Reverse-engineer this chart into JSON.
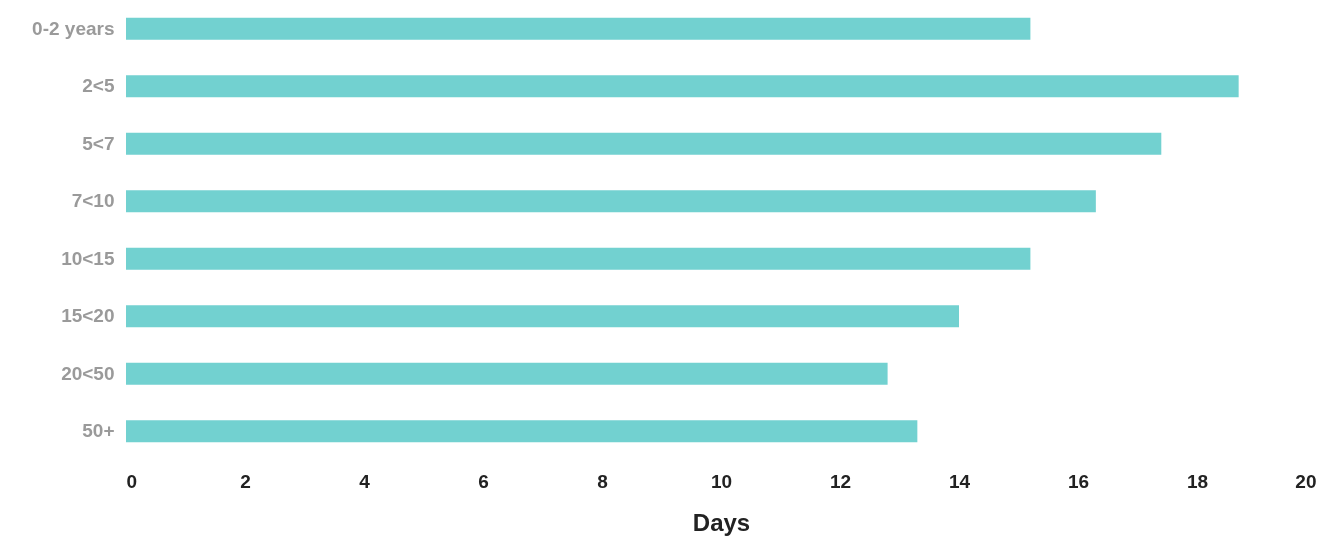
{
  "chart_data": {
    "type": "bar",
    "orientation": "horizontal",
    "xlabel": "Days",
    "categories": [
      "0-2 years",
      "2<5",
      "5<7",
      "7<10",
      "10<15",
      "15<20",
      "20<50",
      "50+"
    ],
    "values": [
      15.2,
      18.7,
      17.4,
      16.3,
      15.2,
      14.0,
      12.8,
      13.3
    ],
    "color": "#72d1d0",
    "xlim": [
      0,
      20
    ],
    "xticks": [
      0,
      2,
      4,
      6,
      8,
      10,
      12,
      14,
      16,
      18,
      20
    ],
    "grid": false
  }
}
